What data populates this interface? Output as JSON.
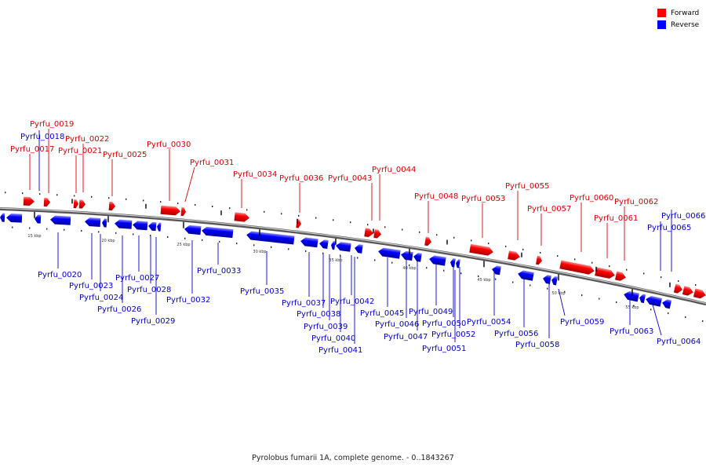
{
  "legend": {
    "forward": {
      "label": "Forward",
      "color": "#ff0000"
    },
    "reverse": {
      "label": "Reverse",
      "color": "#0000ff"
    }
  },
  "caption": "Pyrolobus fumarii 1A, complete genome. - 0..1843267",
  "ticks": [
    "15 kbp",
    "20 kbp",
    "25 kbp",
    "30 kbp",
    "35 kbp",
    "40 kbp",
    "45 kbp",
    "50 kbp",
    "55 kbp"
  ],
  "genes": [
    {
      "name": "Pyrfu_0017",
      "strand": "forward"
    },
    {
      "name": "Pyrfu_0018",
      "strand": "reverse"
    },
    {
      "name": "Pyrfu_0019",
      "strand": "forward"
    },
    {
      "name": "Pyrfu_0020",
      "strand": "reverse"
    },
    {
      "name": "Pyrfu_0021",
      "strand": "forward"
    },
    {
      "name": "Pyrfu_0022",
      "strand": "forward"
    },
    {
      "name": "Pyrfu_0023",
      "strand": "reverse"
    },
    {
      "name": "Pyrfu_0024",
      "strand": "reverse"
    },
    {
      "name": "Pyrfu_0025",
      "strand": "forward"
    },
    {
      "name": "Pyrfu_0026",
      "strand": "reverse"
    },
    {
      "name": "Pyrfu_0027",
      "strand": "reverse"
    },
    {
      "name": "Pyrfu_0028",
      "strand": "reverse"
    },
    {
      "name": "Pyrfu_0029",
      "strand": "reverse"
    },
    {
      "name": "Pyrfu_0030",
      "strand": "forward"
    },
    {
      "name": "Pyrfu_0031",
      "strand": "forward"
    },
    {
      "name": "Pyrfu_0032",
      "strand": "reverse"
    },
    {
      "name": "Pyrfu_0033",
      "strand": "reverse"
    },
    {
      "name": "Pyrfu_0034",
      "strand": "forward"
    },
    {
      "name": "Pyrfu_0035",
      "strand": "reverse"
    },
    {
      "name": "Pyrfu_0036",
      "strand": "forward"
    },
    {
      "name": "Pyrfu_0037",
      "strand": "reverse"
    },
    {
      "name": "Pyrfu_0038",
      "strand": "reverse"
    },
    {
      "name": "Pyrfu_0039",
      "strand": "reverse"
    },
    {
      "name": "Pyrfu_0040",
      "strand": "reverse"
    },
    {
      "name": "Pyrfu_0041",
      "strand": "reverse"
    },
    {
      "name": "Pyrfu_0042",
      "strand": "reverse"
    },
    {
      "name": "Pyrfu_0043",
      "strand": "forward"
    },
    {
      "name": "Pyrfu_0044",
      "strand": "forward"
    },
    {
      "name": "Pyrfu_0045",
      "strand": "reverse"
    },
    {
      "name": "Pyrfu_0046",
      "strand": "reverse"
    },
    {
      "name": "Pyrfu_0047",
      "strand": "reverse"
    },
    {
      "name": "Pyrfu_0048",
      "strand": "forward"
    },
    {
      "name": "Pyrfu_0049",
      "strand": "reverse"
    },
    {
      "name": "Pyrfu_0050",
      "strand": "reverse"
    },
    {
      "name": "Pyrfu_0051",
      "strand": "reverse"
    },
    {
      "name": "Pyrfu_0052",
      "strand": "reverse"
    },
    {
      "name": "Pyrfu_0053",
      "strand": "forward"
    },
    {
      "name": "Pyrfu_0054",
      "strand": "reverse"
    },
    {
      "name": "Pyrfu_0055",
      "strand": "forward"
    },
    {
      "name": "Pyrfu_0056",
      "strand": "reverse"
    },
    {
      "name": "Pyrfu_0057",
      "strand": "forward"
    },
    {
      "name": "Pyrfu_0058",
      "strand": "reverse"
    },
    {
      "name": "Pyrfu_0059",
      "strand": "reverse"
    },
    {
      "name": "Pyrfu_0060",
      "strand": "forward"
    },
    {
      "name": "Pyrfu_0061",
      "strand": "forward"
    },
    {
      "name": "Pyrfu_0062",
      "strand": "forward"
    },
    {
      "name": "Pyrfu_0063",
      "strand": "reverse"
    },
    {
      "name": "Pyrfu_0064",
      "strand": "reverse"
    },
    {
      "name": "Pyrfu_0065",
      "strand": "reverse"
    },
    {
      "name": "Pyrfu_0066",
      "strand": "reverse"
    }
  ]
}
